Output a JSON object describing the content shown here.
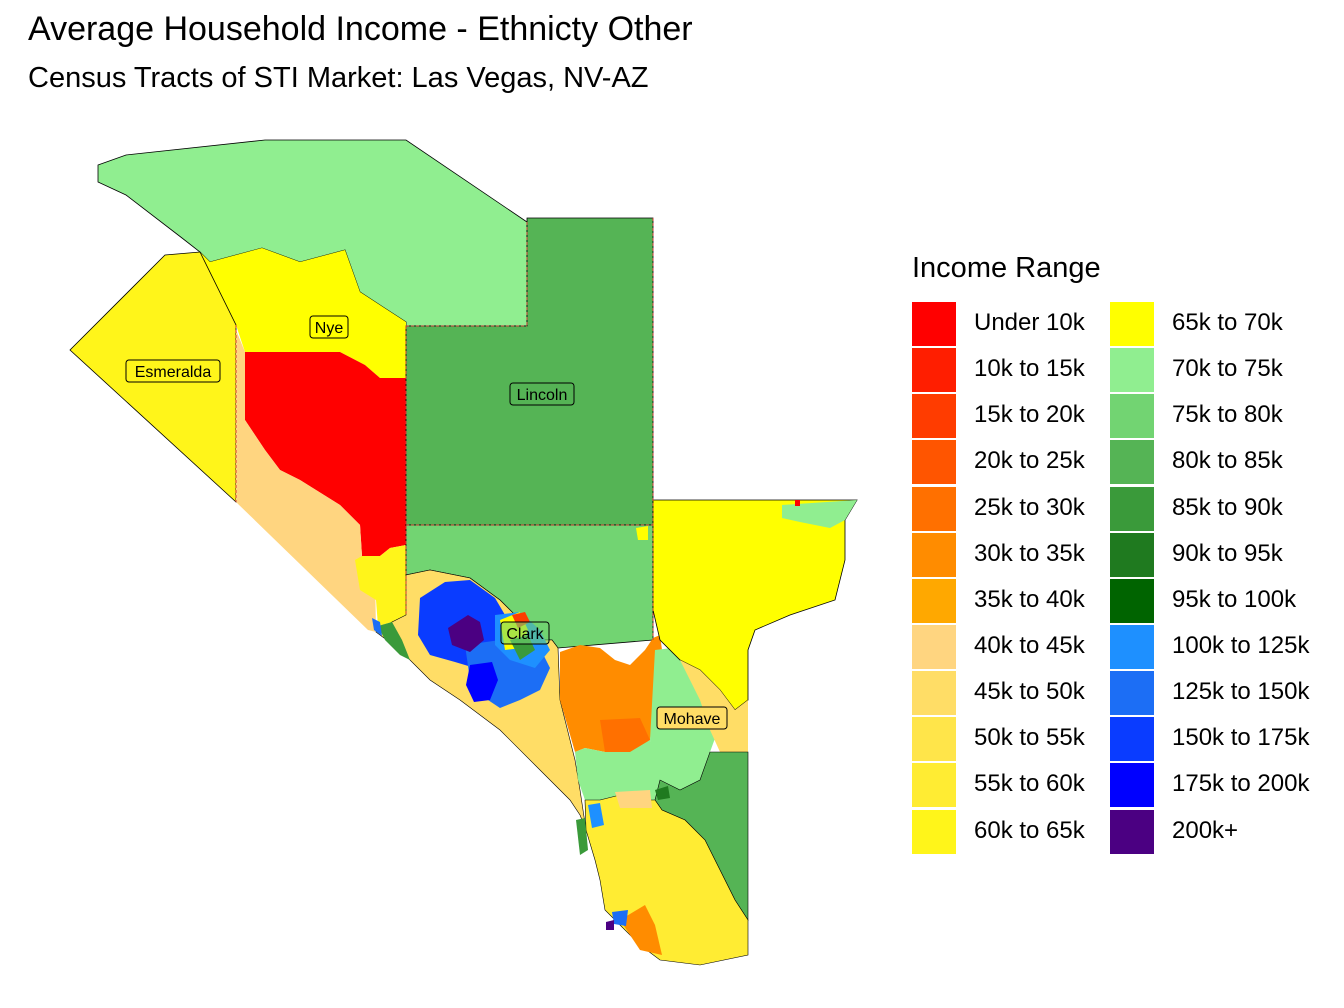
{
  "title": "Average Household Income - Ethnicty Other",
  "subtitle": "Census Tracts of STI Market: Las Vegas, NV-AZ",
  "legend": {
    "title": "Income Range",
    "columns": [
      [
        {
          "label": "Under 10k",
          "color": "#FF0000"
        },
        {
          "label": "10k to 15k",
          "color": "#FF1E00"
        },
        {
          "label": "15k to 20k",
          "color": "#FF3C00"
        },
        {
          "label": "20k to 25k",
          "color": "#FF5500"
        },
        {
          "label": "25k to 30k",
          "color": "#FF7000"
        },
        {
          "label": "30k to 35k",
          "color": "#FF8C00"
        },
        {
          "label": "35k to 40k",
          "color": "#FFA800"
        },
        {
          "label": "40k to 45k",
          "color": "#FFD580"
        },
        {
          "label": "45k to 50k",
          "color": "#FFDD66"
        },
        {
          "label": "50k to 55k",
          "color": "#FFE54A"
        },
        {
          "label": "55k to 60k",
          "color": "#FFEC33"
        },
        {
          "label": "60k to 65k",
          "color": "#FFF51A"
        }
      ],
      [
        {
          "label": "65k to 70k",
          "color": "#FFFF00"
        },
        {
          "label": "70k to 75k",
          "color": "#90EE90"
        },
        {
          "label": "75k to 80k",
          "color": "#72D472"
        },
        {
          "label": "80k to 85k",
          "color": "#55B455"
        },
        {
          "label": "85k to 90k",
          "color": "#3A9A3A"
        },
        {
          "label": "90k to 95k",
          "color": "#1F7A1F"
        },
        {
          "label": "95k to 100k",
          "color": "#006400"
        },
        {
          "label": "100k to 125k",
          "color": "#1E90FF"
        },
        {
          "label": "125k to 150k",
          "color": "#1C6EF5"
        },
        {
          "label": "150k to 175k",
          "color": "#0A3CFF"
        },
        {
          "label": "175k to 200k",
          "color": "#0000FF"
        },
        {
          "label": "200k+",
          "color": "#4B0082"
        }
      ]
    ]
  },
  "counties": [
    {
      "name": "Nye"
    },
    {
      "name": "Esmeralda"
    },
    {
      "name": "Lincoln"
    },
    {
      "name": "Clark"
    },
    {
      "name": "Mohave"
    }
  ]
}
